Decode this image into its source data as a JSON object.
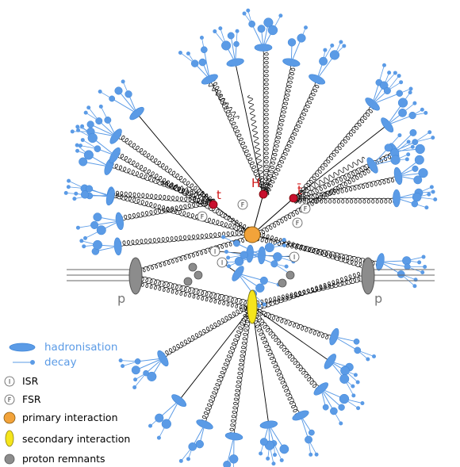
{
  "diagram": {
    "particles": {
      "top": "t",
      "higgs": "H",
      "antitop": "t̄",
      "beam_left": "p",
      "beam_right": "p",
      "isr_symbol": "I",
      "fsr_symbol": "F"
    },
    "colors": {
      "hadron_blue": "#5b9be6",
      "hadron_dark": "#3f86d8",
      "particle_red": "#c8102e",
      "label_red": "#d01818",
      "primary_orange": "#f2a33a",
      "secondary_yellow": "#f5e51c",
      "remnant_gray": "#8c8c8c"
    },
    "legend": [
      {
        "icon": "hadronisation-ellipse-icon",
        "label": "hadronisation",
        "color": "#5b9be6"
      },
      {
        "icon": "decay-arrow-icon",
        "label": "decay",
        "color": "#5b9be6"
      },
      {
        "icon": "isr-circle-icon",
        "label": "ISR"
      },
      {
        "icon": "fsr-circle-icon",
        "label": "FSR"
      },
      {
        "icon": "primary-dot-icon",
        "label": "primary interaction"
      },
      {
        "icon": "secondary-ellipse-icon",
        "label": "secondary interaction"
      },
      {
        "icon": "remnant-dot-icon",
        "label": "proton remnants"
      }
    ]
  }
}
